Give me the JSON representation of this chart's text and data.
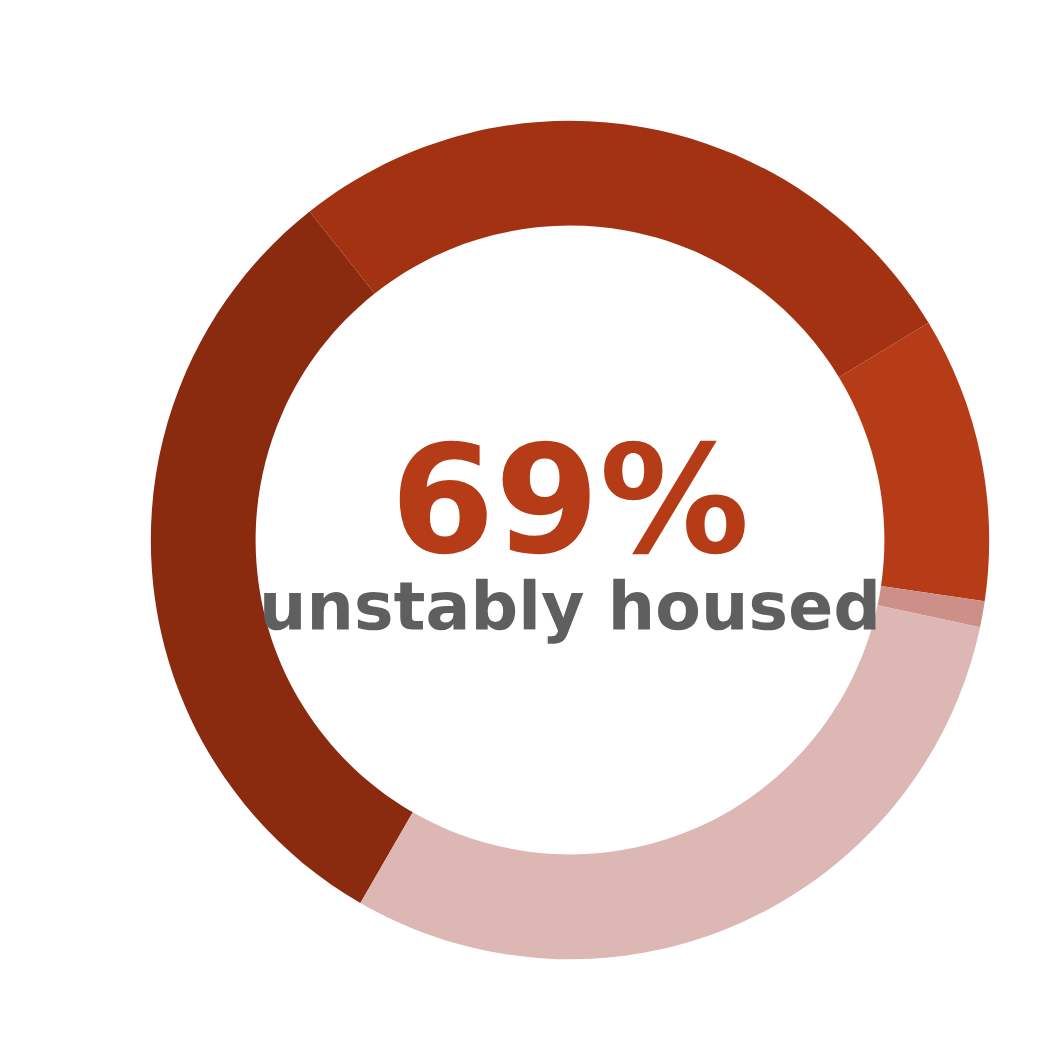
{
  "chart_data": {
    "type": "donut",
    "categories": [
      null,
      null,
      null,
      null,
      null
    ],
    "values": [
      31,
      27,
      11,
      1,
      30
    ],
    "colors": [
      "#8a2a0f",
      "#a23212",
      "#b53c16",
      "#cc9088",
      "#dcb7b4"
    ],
    "annotations": [
      "69%",
      "unstably housed"
    ]
  }
}
